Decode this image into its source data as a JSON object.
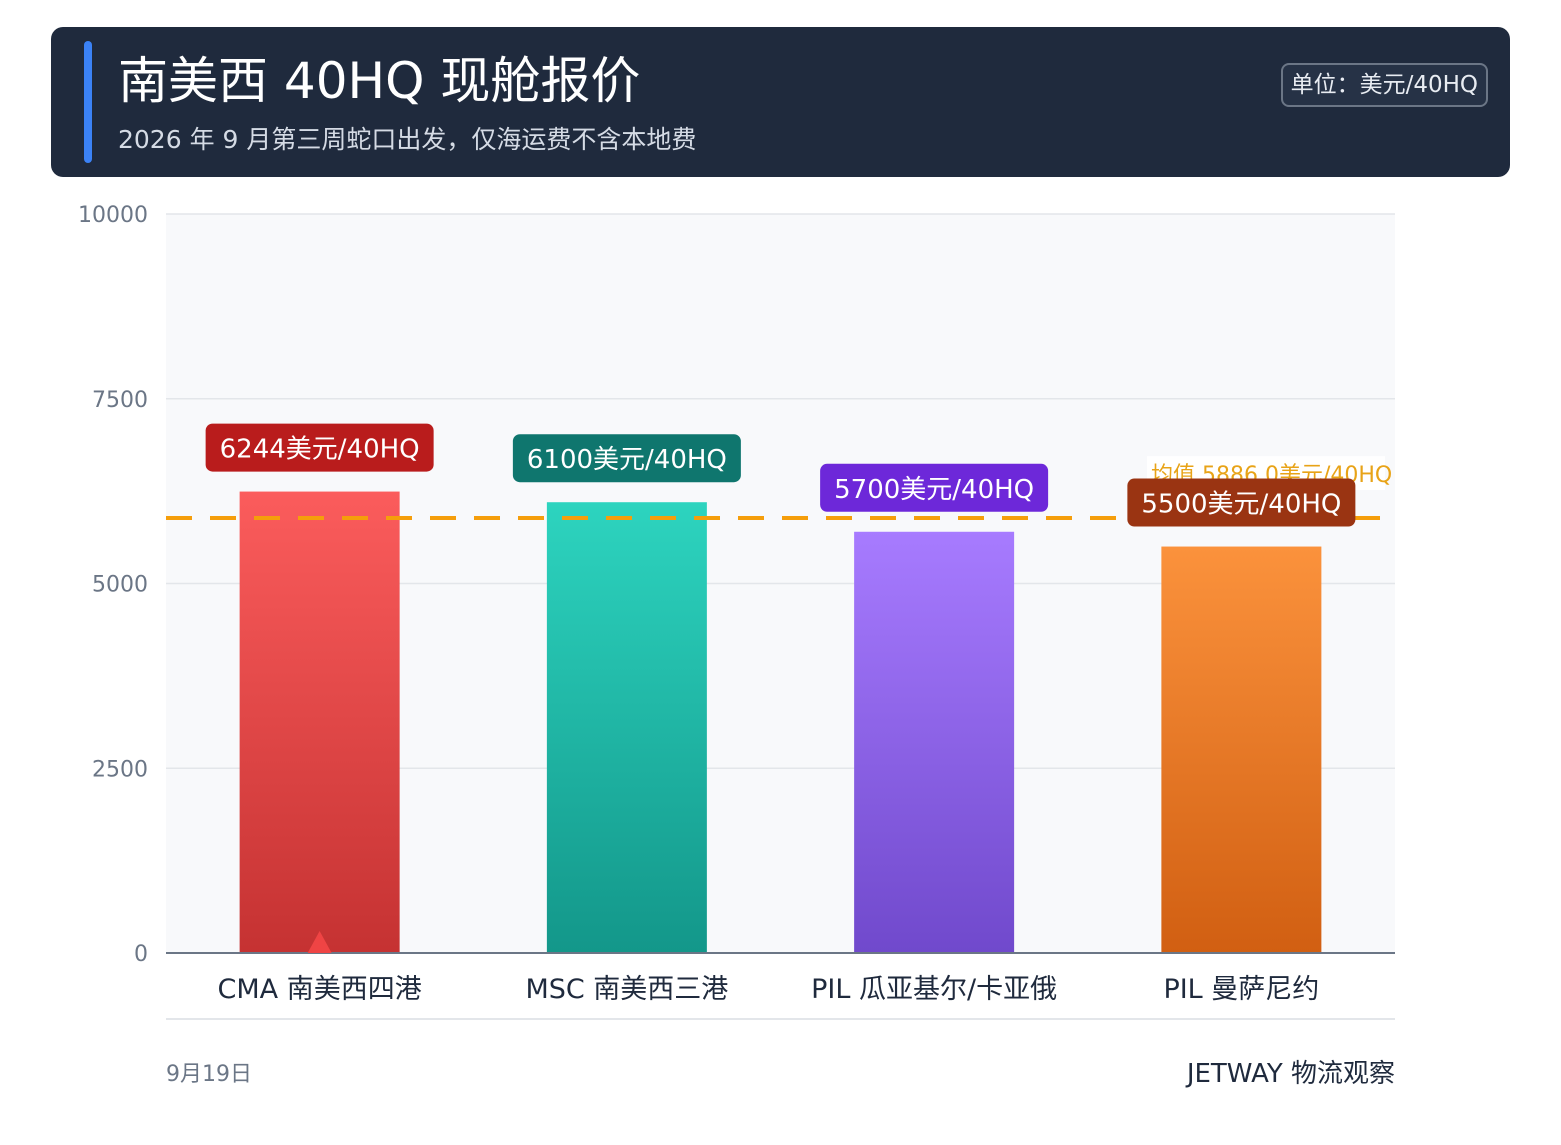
{
  "header": {
    "title": "南美西 40HQ 现舱报价",
    "subtitle": "2026 年 9 月第三周蛇口出发，仅海运费不含本地费",
    "unit_badge": "单位：美元/40HQ"
  },
  "footer": {
    "date": "9月19日",
    "brand": "JETWAY 物流观察"
  },
  "colors": {
    "header_bg": "#1f2a3d",
    "accent": "#3b82f6",
    "average_line": "#f59e0b"
  },
  "chart_data": {
    "type": "bar",
    "title": "南美西 40HQ 现舱报价",
    "unit": "美元/40HQ",
    "ylim": [
      0,
      10000
    ],
    "yticks": [
      0,
      2500,
      5000,
      7500,
      10000
    ],
    "grid": true,
    "categories": [
      "CMA 南美西四港",
      "MSC 南美西三港",
      "PIL 瓜亚基尔/卡亚俄",
      "PIL 曼萨尼约"
    ],
    "values": [
      6244,
      6100,
      5700,
      5500
    ],
    "value_labels": [
      "6244美元/40HQ",
      "6100美元/40HQ",
      "5700美元/40HQ",
      "5500美元/40HQ"
    ],
    "bar_colors": [
      {
        "top": "#fb5c5c",
        "bottom": "#c53232",
        "label_bg": "#b91c1c"
      },
      {
        "top": "#2dd4bf",
        "bottom": "#13978a",
        "label_bg": "#0f766e"
      },
      {
        "top": "#a77bff",
        "bottom": "#7049cc",
        "label_bg": "#6d28d9"
      },
      {
        "top": "#fb923c",
        "bottom": "#d15f12",
        "label_bg": "#9a3412"
      }
    ],
    "highlight_marker": {
      "category": "CMA 南美西四港",
      "shape": "triangle-up",
      "color": "#ef4444"
    },
    "average": {
      "value": 5886.0,
      "label": "均值 5886.0美元/40HQ"
    }
  }
}
